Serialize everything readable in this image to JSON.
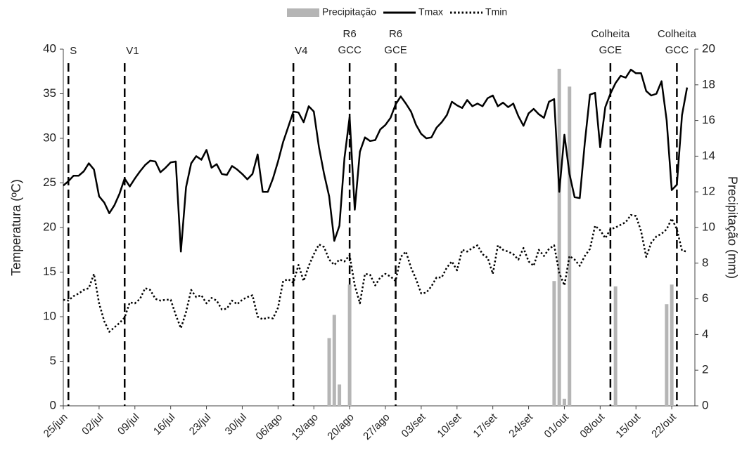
{
  "chart_data": {
    "type": "combo",
    "categories": [
      "25/jun",
      null,
      null,
      null,
      null,
      null,
      null,
      "02/jul",
      null,
      null,
      null,
      null,
      null,
      null,
      "09/jul",
      null,
      null,
      null,
      null,
      null,
      null,
      "16/jul",
      null,
      null,
      null,
      null,
      null,
      null,
      "23/jul",
      null,
      null,
      null,
      null,
      null,
      null,
      "30/jul",
      null,
      null,
      null,
      null,
      null,
      null,
      "06/ago",
      null,
      null,
      null,
      null,
      null,
      null,
      "13/ago",
      null,
      null,
      null,
      null,
      null,
      null,
      "20/ago",
      null,
      null,
      null,
      null,
      null,
      null,
      "27/ago",
      null,
      null,
      null,
      null,
      null,
      null,
      "03/set",
      null,
      null,
      null,
      null,
      null,
      null,
      "10/set",
      null,
      null,
      null,
      null,
      null,
      null,
      "17/set",
      null,
      null,
      null,
      null,
      null,
      null,
      "24/set",
      null,
      null,
      null,
      null,
      null,
      null,
      "01/out",
      null,
      null,
      null,
      null,
      null,
      null,
      "08/out",
      null,
      null,
      null,
      null,
      null,
      null,
      "15/out",
      null,
      null,
      null,
      null,
      null,
      null,
      "22/out",
      null,
      null,
      null
    ],
    "series": [
      {
        "name": "Precipitação",
        "type": "bar",
        "axis": "y2",
        "color": "#b5b5b5",
        "values": [
          0,
          0,
          0,
          0,
          0,
          0,
          0,
          0,
          0,
          0,
          0,
          0,
          0,
          0,
          0,
          0,
          0,
          0,
          0,
          0,
          0,
          0,
          0,
          0,
          0,
          0,
          0,
          0,
          0,
          0,
          0,
          0,
          0,
          0,
          0,
          0,
          0,
          0,
          0,
          0,
          0,
          0,
          0,
          0,
          0,
          0,
          0,
          0,
          0,
          0,
          0,
          0,
          3.8,
          5.1,
          1.2,
          0,
          6.8,
          0,
          0,
          0,
          0,
          0,
          0,
          0,
          0,
          0,
          0,
          0,
          0,
          0,
          0,
          0,
          0,
          0,
          0,
          0,
          0,
          0,
          0,
          0,
          0,
          0,
          0,
          0,
          0,
          0,
          0,
          0,
          0,
          0,
          0,
          0,
          0,
          0,
          0,
          0,
          7.0,
          18.9,
          0.4,
          17.9,
          0,
          0,
          0,
          0,
          0,
          0,
          0,
          0,
          6.7,
          0,
          0,
          0,
          0,
          0,
          0,
          0,
          0,
          0,
          5.7,
          6.8,
          0,
          0,
          0
        ]
      },
      {
        "name": "Tmax",
        "type": "line",
        "dash": "solid",
        "color": "#000000",
        "values": [
          24.7,
          25.2,
          25.8,
          25.8,
          26.3,
          27.2,
          26.5,
          23.5,
          22.8,
          21.6,
          22.5,
          23.8,
          25.5,
          24.6,
          25.5,
          26.3,
          27.0,
          27.5,
          27.4,
          26.2,
          26.7,
          27.3,
          27.4,
          17.3,
          24.5,
          27.2,
          28.0,
          27.6,
          28.7,
          26.7,
          27.1,
          26.0,
          25.9,
          26.9,
          26.5,
          26.0,
          25.4,
          26.0,
          28.2,
          24.0,
          24.0,
          25.5,
          27.4,
          29.6,
          31.3,
          33.0,
          32.9,
          31.8,
          33.6,
          33.0,
          29.0,
          26.0,
          23.5,
          18.5,
          20.2,
          27.8,
          32.4,
          22.0,
          28.5,
          30.1,
          29.7,
          29.8,
          31.0,
          31.5,
          32.3,
          33.8,
          34.7,
          33.9,
          33.0,
          31.5,
          30.5,
          30.0,
          30.1,
          31.2,
          31.8,
          32.6,
          34.1,
          33.7,
          33.4,
          34.3,
          33.6,
          33.9,
          33.6,
          34.5,
          34.8,
          33.6,
          34.0,
          33.5,
          33.9,
          32.5,
          31.4,
          32.8,
          33.3,
          32.7,
          32.3,
          34.1,
          34.4,
          24.0,
          30.4,
          26.0,
          23.4,
          23.3,
          29.5,
          34.9,
          35.1,
          29.0,
          33.5,
          35.0,
          36.2,
          37.0,
          36.8,
          37.7,
          37.3,
          37.3,
          35.3,
          34.8,
          35.0,
          36.4,
          32.0,
          24.2,
          24.8,
          32.6,
          35.7
        ]
      },
      {
        "name": "Tmin",
        "type": "line",
        "dash": "dotted",
        "color": "#000000",
        "values": [
          11.9,
          11.8,
          12.3,
          12.6,
          13.0,
          13.2,
          14.8,
          11.5,
          9.5,
          8.3,
          8.8,
          9.3,
          9.9,
          11.6,
          11.5,
          12.0,
          13.2,
          13.0,
          12.0,
          11.8,
          11.9,
          11.9,
          10.2,
          8.7,
          10.5,
          13.0,
          12.2,
          12.4,
          11.5,
          12.1,
          11.8,
          10.8,
          10.9,
          11.8,
          11.4,
          11.9,
          12.2,
          12.4,
          10.0,
          9.7,
          9.9,
          9.8,
          11.0,
          14.0,
          14.2,
          13.8,
          15.8,
          14.0,
          15.7,
          17.0,
          18.1,
          17.8,
          16.4,
          15.8,
          16.4,
          16.2,
          16.9,
          13.5,
          11.5,
          14.8,
          14.7,
          13.5,
          14.4,
          14.8,
          14.5,
          14.0,
          16.7,
          17.3,
          15.5,
          14.2,
          12.6,
          12.7,
          13.4,
          14.4,
          14.4,
          15.5,
          16.2,
          15.2,
          17.5,
          17.3,
          17.7,
          18.0,
          17.0,
          16.6,
          14.8,
          18.0,
          17.5,
          17.3,
          17.0,
          16.4,
          17.7,
          16.2,
          15.7,
          17.5,
          16.8,
          17.6,
          18.0,
          14.9,
          13.5,
          16.8,
          16.4,
          15.7,
          16.8,
          17.6,
          20.2,
          19.7,
          18.8,
          19.8,
          20.0,
          20.3,
          20.6,
          21.4,
          21.3,
          19.6,
          16.7,
          18.3,
          19.0,
          19.3,
          19.8,
          21.0,
          19.8,
          17.4,
          17.3
        ]
      }
    ],
    "ylabel": "Temperatura (ºC)",
    "y2label": "Precipitação (mm)",
    "ylim": [
      0,
      40
    ],
    "yticks": [
      0,
      5,
      10,
      15,
      20,
      25,
      30,
      35,
      40
    ],
    "y2lim": [
      0,
      20
    ],
    "y2ticks": [
      0,
      2,
      4,
      6,
      8,
      10,
      12,
      14,
      16,
      18,
      20
    ],
    "legend": "top",
    "annotations": [
      {
        "text": [
          "S"
        ],
        "at": 1
      },
      {
        "text": [
          "V1"
        ],
        "at": 12
      },
      {
        "text": [
          "V4"
        ],
        "at": 45
      },
      {
        "text": [
          "R6",
          "GCC"
        ],
        "at": 56
      },
      {
        "text": [
          "R6",
          "GCE"
        ],
        "at": 65
      },
      {
        "text": [
          "Colheita",
          "GCE"
        ],
        "at": 107
      },
      {
        "text": [
          "Colheita",
          "GCC"
        ],
        "at": 120
      }
    ]
  }
}
